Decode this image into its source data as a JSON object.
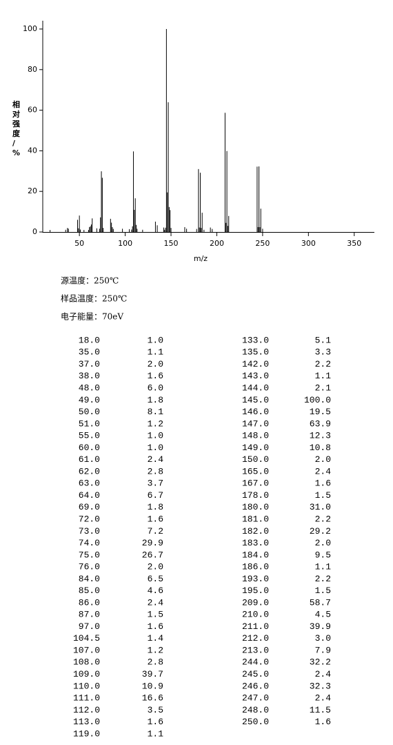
{
  "chart_data": {
    "type": "bar",
    "ylabel": "相对强度/%",
    "xlabel": "m/z",
    "color": "#000000",
    "x": [
      18,
      35,
      37,
      38,
      48,
      49,
      50,
      51,
      55,
      60,
      61,
      62,
      63,
      64,
      69,
      72,
      73,
      74,
      75,
      76,
      84,
      85,
      86,
      87,
      97,
      104.5,
      107,
      108,
      109,
      110,
      111,
      112,
      113,
      119,
      133,
      135,
      142,
      143,
      144,
      145,
      146,
      147,
      148,
      149,
      150,
      165,
      167,
      178,
      180,
      181,
      182,
      183,
      184,
      186,
      193,
      195,
      209,
      210,
      211,
      212,
      213,
      244,
      245,
      246,
      247,
      248,
      250
    ],
    "values": [
      1.0,
      1.1,
      2.0,
      1.6,
      6.0,
      1.8,
      8.1,
      1.2,
      1.0,
      1.0,
      2.4,
      2.8,
      3.7,
      6.7,
      1.8,
      1.6,
      7.2,
      29.9,
      26.7,
      2.0,
      6.5,
      4.6,
      2.4,
      1.5,
      1.6,
      1.4,
      1.2,
      2.8,
      39.7,
      10.9,
      16.6,
      3.5,
      1.6,
      1.1,
      5.1,
      3.3,
      2.2,
      1.1,
      2.1,
      100.0,
      19.5,
      63.9,
      12.3,
      10.8,
      2.0,
      2.4,
      1.6,
      1.5,
      31.0,
      2.2,
      29.2,
      2.0,
      9.5,
      1.1,
      2.2,
      1.5,
      58.7,
      4.5,
      39.9,
      3.0,
      7.9,
      32.2,
      2.4,
      32.3,
      2.4,
      11.5,
      1.6
    ],
    "xlim": [
      10,
      372
    ],
    "xticks": [
      50,
      100,
      150,
      200,
      250,
      300,
      350
    ],
    "ylim": [
      0,
      100
    ],
    "yticks": [
      0,
      20,
      40,
      60,
      80,
      100
    ]
  },
  "conditions": [
    "源温度：250℃",
    "样品温度：250℃",
    "电子能量：70eV"
  ],
  "table": {
    "left": [
      [
        "18.0",
        "1.0"
      ],
      [
        "35.0",
        "1.1"
      ],
      [
        "37.0",
        "2.0"
      ],
      [
        "38.0",
        "1.6"
      ],
      [
        "48.0",
        "6.0"
      ],
      [
        "49.0",
        "1.8"
      ],
      [
        "50.0",
        "8.1"
      ],
      [
        "51.0",
        "1.2"
      ],
      [
        "55.0",
        "1.0"
      ],
      [
        "60.0",
        "1.0"
      ],
      [
        "61.0",
        "2.4"
      ],
      [
        "62.0",
        "2.8"
      ],
      [
        "63.0",
        "3.7"
      ],
      [
        "64.0",
        "6.7"
      ],
      [
        "69.0",
        "1.8"
      ],
      [
        "72.0",
        "1.6"
      ],
      [
        "73.0",
        "7.2"
      ],
      [
        "74.0",
        "29.9"
      ],
      [
        "75.0",
        "26.7"
      ],
      [
        "76.0",
        "2.0"
      ],
      [
        "84.0",
        "6.5"
      ],
      [
        "85.0",
        "4.6"
      ],
      [
        "86.0",
        "2.4"
      ],
      [
        "87.0",
        "1.5"
      ],
      [
        "97.0",
        "1.6"
      ],
      [
        "104.5",
        "1.4"
      ],
      [
        "107.0",
        "1.2"
      ],
      [
        "108.0",
        "2.8"
      ],
      [
        "109.0",
        "39.7"
      ],
      [
        "110.0",
        "10.9"
      ],
      [
        "111.0",
        "16.6"
      ],
      [
        "112.0",
        "3.5"
      ],
      [
        "113.0",
        "1.6"
      ],
      [
        "119.0",
        "1.1"
      ]
    ],
    "right": [
      [
        "133.0",
        "5.1"
      ],
      [
        "135.0",
        "3.3"
      ],
      [
        "142.0",
        "2.2"
      ],
      [
        "143.0",
        "1.1"
      ],
      [
        "144.0",
        "2.1"
      ],
      [
        "145.0",
        "100.0"
      ],
      [
        "146.0",
        "19.5"
      ],
      [
        "147.0",
        "63.9"
      ],
      [
        "148.0",
        "12.3"
      ],
      [
        "149.0",
        "10.8"
      ],
      [
        "150.0",
        "2.0"
      ],
      [
        "165.0",
        "2.4"
      ],
      [
        "167.0",
        "1.6"
      ],
      [
        "178.0",
        "1.5"
      ],
      [
        "180.0",
        "31.0"
      ],
      [
        "181.0",
        "2.2"
      ],
      [
        "182.0",
        "29.2"
      ],
      [
        "183.0",
        "2.0"
      ],
      [
        "184.0",
        "9.5"
      ],
      [
        "186.0",
        "1.1"
      ],
      [
        "193.0",
        "2.2"
      ],
      [
        "195.0",
        "1.5"
      ],
      [
        "209.0",
        "58.7"
      ],
      [
        "210.0",
        "4.5"
      ],
      [
        "211.0",
        "39.9"
      ],
      [
        "212.0",
        "3.0"
      ],
      [
        "213.0",
        "7.9"
      ],
      [
        "244.0",
        "32.2"
      ],
      [
        "245.0",
        "2.4"
      ],
      [
        "246.0",
        "32.3"
      ],
      [
        "247.0",
        "2.4"
      ],
      [
        "248.0",
        "11.5"
      ],
      [
        "250.0",
        "1.6"
      ]
    ]
  }
}
